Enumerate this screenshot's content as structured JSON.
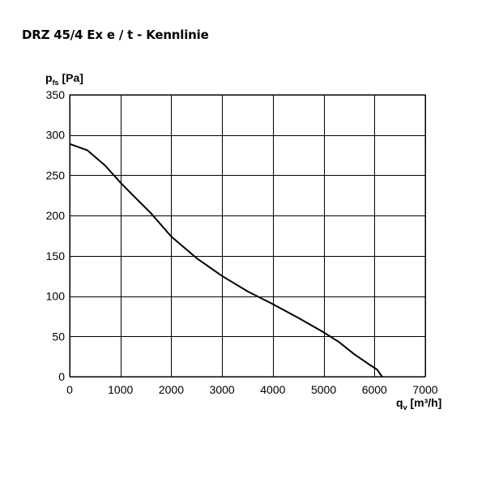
{
  "title": "DRZ 45/4 Ex e / t - Kennlinie",
  "chart_data": {
    "type": "line",
    "title": "DRZ 45/4 Ex e / t - Kennlinie",
    "ylabel": {
      "main": "p",
      "sub": "fs",
      "unit": " [Pa]"
    },
    "xlabel": {
      "main": "q",
      "sub": "v",
      "unit": " [m³/h]"
    },
    "xlim": [
      0,
      7000
    ],
    "ylim": [
      0,
      350
    ],
    "x_ticks": [
      0,
      1000,
      2000,
      3000,
      4000,
      5000,
      6000,
      7000
    ],
    "y_ticks": [
      0,
      50,
      100,
      150,
      200,
      250,
      300,
      350
    ],
    "grid": true,
    "series": [
      {
        "x": [
          0,
          350,
          700,
          1000,
          1250,
          1600,
          2000,
          2500,
          3000,
          3500,
          4000,
          4500,
          5000,
          5300,
          5600,
          5900,
          6050,
          6150
        ],
        "y": [
          289,
          281,
          262,
          241,
          225,
          203,
          174,
          147,
          125,
          106,
          90,
          73,
          55,
          43,
          28,
          15,
          9,
          0
        ]
      }
    ]
  }
}
